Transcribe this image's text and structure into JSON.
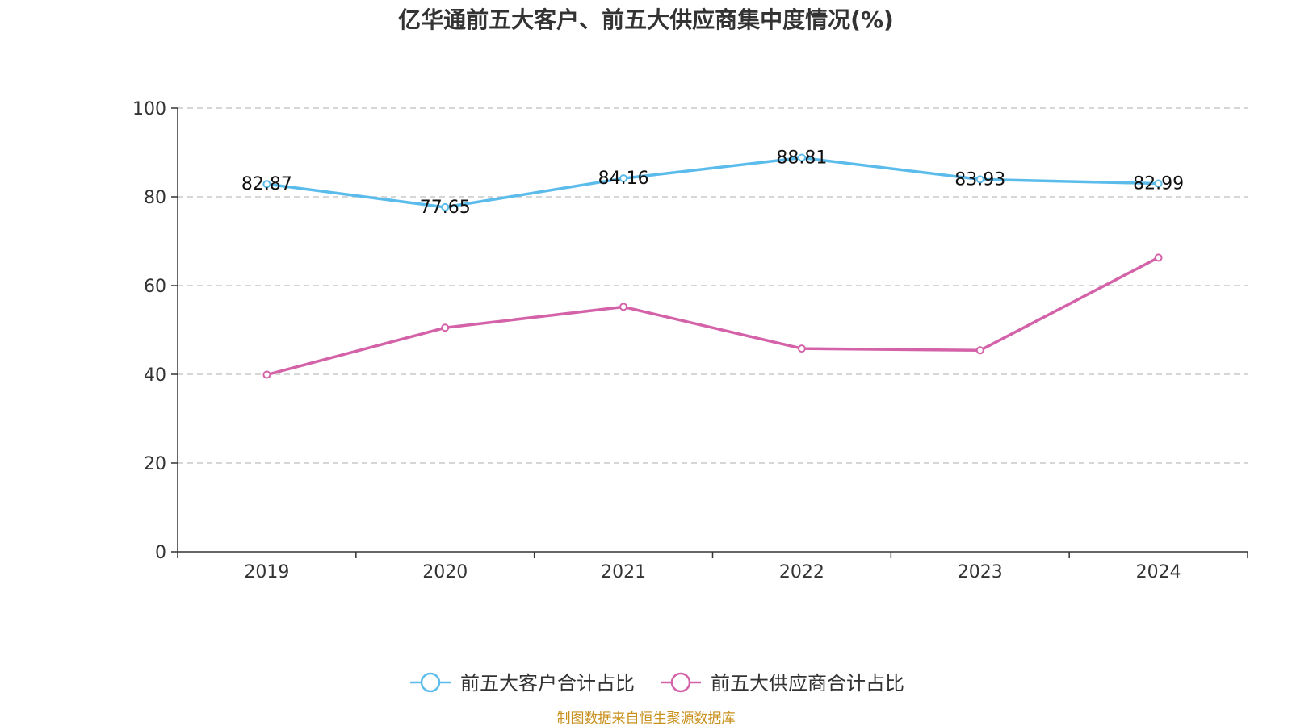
{
  "chart_data": {
    "type": "line",
    "title": "亿华通前五大客户、前五大供应商集中度情况(%)",
    "categories": [
      "2019",
      "2020",
      "2021",
      "2022",
      "2023",
      "2024"
    ],
    "ylim": [
      0,
      100
    ],
    "yticks": [
      0,
      20,
      40,
      60,
      80,
      100
    ],
    "grid": true,
    "legend_position": "bottom",
    "series": [
      {
        "name": "前五大客户合计占比",
        "color": "#5bbcec",
        "values": [
          82.87,
          77.65,
          84.16,
          88.81,
          83.93,
          82.99
        ],
        "labels": [
          "82.87",
          "77.65",
          "84.16",
          "88.81",
          "83.93",
          "82.99"
        ]
      },
      {
        "name": "前五大供应商合计占比",
        "color": "#d462a8",
        "values": [
          39.9,
          50.5,
          55.2,
          45.8,
          45.4,
          66.3
        ],
        "labels": []
      }
    ]
  },
  "source_text": "制图数据来自恒生聚源数据库",
  "source_color": "#c8901c"
}
